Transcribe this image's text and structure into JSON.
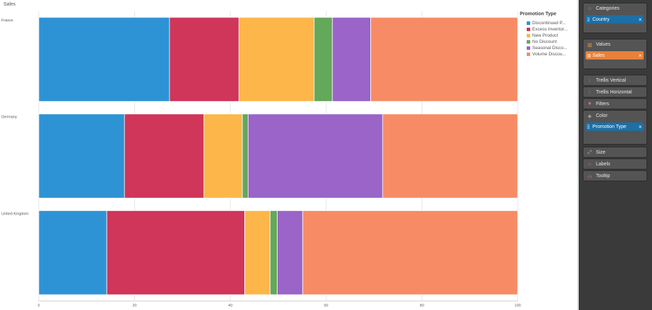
{
  "chart_title": "Sales",
  "chart_data": {
    "type": "bar",
    "orientation": "horizontal",
    "stacked": true,
    "normalized": true,
    "title": "Sales",
    "categories": [
      "France",
      "Germany",
      "United Kingdom"
    ],
    "series": [
      {
        "name": "Discontinued Products",
        "display": "Discontinued P...",
        "color": "#2e93d5",
        "values": [
          27.3,
          17.9,
          14.2
        ]
      },
      {
        "name": "Excess Inventory",
        "display": "Excess Inventor...",
        "color": "#cf3659",
        "values": [
          14.5,
          16.6,
          28.8
        ]
      },
      {
        "name": "New Product",
        "display": "New Product",
        "color": "#fdb64a",
        "values": [
          15.7,
          8.0,
          5.3
        ]
      },
      {
        "name": "No Discount",
        "display": "No Discount",
        "color": "#64a85a",
        "values": [
          3.8,
          1.2,
          1.5
        ]
      },
      {
        "name": "Seasonal Discount",
        "display": "Seasonal Disco...",
        "color": "#9a64c8",
        "values": [
          8.0,
          28.1,
          5.3
        ]
      },
      {
        "name": "Volume Discount",
        "display": "Volume Discou...",
        "color": "#f78b65",
        "values": [
          30.7,
          28.2,
          44.9
        ]
      }
    ],
    "xlim": [
      0,
      100
    ],
    "xticks": [
      0,
      20,
      40,
      60,
      80,
      100
    ],
    "xlabel": "",
    "ylabel": "",
    "legend": {
      "title": "Promotion Type",
      "position": "right"
    }
  },
  "panel": {
    "categories": {
      "label": "Categories",
      "pill": "Country"
    },
    "values": {
      "label": "Values",
      "pill": "Sales"
    },
    "trellis_vertical": {
      "label": "Trellis Vertical"
    },
    "trellis_horizontal": {
      "label": "Trellis Horizontal"
    },
    "filters": {
      "label": "Filters"
    },
    "color": {
      "label": "Color",
      "pill": "Promotion Type"
    },
    "size": {
      "label": "Size"
    },
    "labels": {
      "label": "Labels"
    },
    "tooltip": {
      "label": "Tooltip"
    }
  }
}
